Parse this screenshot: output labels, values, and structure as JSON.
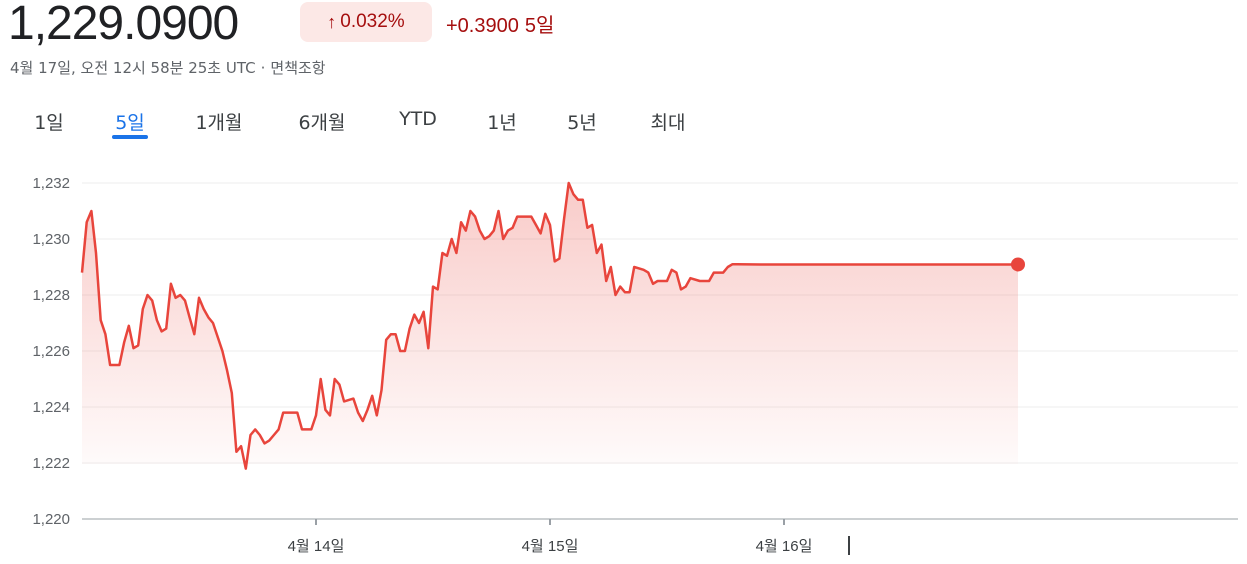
{
  "quote": {
    "price": "1,229.0900",
    "change_percent": "0.032%",
    "change_abs": "+0.3900",
    "period_label": "5일",
    "timestamp": "4월 17일, 오전 12시 58분 25초 UTC",
    "separator": "·",
    "disclaimer": "면책조항"
  },
  "tabs": [
    "1일",
    "5일",
    "1개월",
    "6개월",
    "YTD",
    "1년",
    "5년",
    "최대"
  ],
  "active_tab": "5일",
  "colors": {
    "line": "#e8453c",
    "up_text": "#a50e0e",
    "badge_bg": "#fce8e6",
    "tab_active": "#1a73e8"
  },
  "chart_data": {
    "type": "area",
    "ylim": [
      1220,
      1232
    ],
    "yticks": [
      1220,
      1222,
      1224,
      1226,
      1228,
      1230,
      1232
    ],
    "ytick_labels": [
      "1,220",
      "1,222",
      "1,224",
      "1,226",
      "1,228",
      "1,230",
      "1,232"
    ],
    "xticks": [
      {
        "label": "4월 14일",
        "index": 100
      },
      {
        "label": "4월 15일",
        "index": 200
      },
      {
        "label": "4월 16일",
        "index": 300
      }
    ],
    "x_range": [
      0,
      400
    ],
    "grid": true,
    "series": [
      {
        "values": [
          [
            0,
            1228.8
          ],
          [
            2,
            1230.6
          ],
          [
            4,
            1231.0
          ],
          [
            6,
            1229.5
          ],
          [
            8,
            1227.1
          ],
          [
            10,
            1226.6
          ],
          [
            12,
            1225.5
          ],
          [
            16,
            1225.5
          ],
          [
            18,
            1226.3
          ],
          [
            20,
            1226.9
          ],
          [
            22,
            1226.1
          ],
          [
            24,
            1226.2
          ],
          [
            26,
            1227.5
          ],
          [
            28,
            1228.0
          ],
          [
            30,
            1227.8
          ],
          [
            32,
            1227.1
          ],
          [
            34,
            1226.7
          ],
          [
            36,
            1226.8
          ],
          [
            38,
            1228.4
          ],
          [
            40,
            1227.9
          ],
          [
            42,
            1228.0
          ],
          [
            44,
            1227.8
          ],
          [
            46,
            1227.2
          ],
          [
            48,
            1226.6
          ],
          [
            50,
            1227.9
          ],
          [
            52,
            1227.5
          ],
          [
            54,
            1227.2
          ],
          [
            56,
            1227.0
          ],
          [
            58,
            1226.5
          ],
          [
            60,
            1226.0
          ],
          [
            62,
            1225.3
          ],
          [
            64,
            1224.5
          ],
          [
            66,
            1222.4
          ],
          [
            68,
            1222.6
          ],
          [
            70,
            1221.8
          ],
          [
            72,
            1223.0
          ],
          [
            74,
            1223.2
          ],
          [
            76,
            1223.0
          ],
          [
            78,
            1222.7
          ],
          [
            80,
            1222.8
          ],
          [
            82,
            1223.0
          ],
          [
            84,
            1223.2
          ],
          [
            86,
            1223.8
          ],
          [
            92,
            1223.8
          ],
          [
            94,
            1223.2
          ],
          [
            98,
            1223.2
          ],
          [
            100,
            1223.7
          ],
          [
            102,
            1225.0
          ],
          [
            104,
            1223.9
          ],
          [
            106,
            1223.7
          ],
          [
            108,
            1225.0
          ],
          [
            110,
            1224.8
          ],
          [
            112,
            1224.2
          ],
          [
            116,
            1224.3
          ],
          [
            118,
            1223.8
          ],
          [
            120,
            1223.5
          ],
          [
            122,
            1223.9
          ],
          [
            124,
            1224.4
          ],
          [
            126,
            1223.7
          ],
          [
            128,
            1224.6
          ],
          [
            130,
            1226.4
          ],
          [
            132,
            1226.6
          ],
          [
            134,
            1226.6
          ],
          [
            136,
            1226.0
          ],
          [
            138,
            1226.0
          ],
          [
            140,
            1226.8
          ],
          [
            142,
            1227.3
          ],
          [
            144,
            1227.0
          ],
          [
            146,
            1227.4
          ],
          [
            148,
            1226.1
          ],
          [
            150,
            1228.3
          ],
          [
            152,
            1228.2
          ],
          [
            154,
            1229.5
          ],
          [
            156,
            1229.4
          ],
          [
            158,
            1230.0
          ],
          [
            160,
            1229.5
          ],
          [
            162,
            1230.6
          ],
          [
            164,
            1230.3
          ],
          [
            166,
            1231.0
          ],
          [
            168,
            1230.8
          ],
          [
            170,
            1230.3
          ],
          [
            172,
            1230.0
          ],
          [
            174,
            1230.1
          ],
          [
            176,
            1230.3
          ],
          [
            178,
            1231.0
          ],
          [
            180,
            1230.0
          ],
          [
            182,
            1230.3
          ],
          [
            184,
            1230.4
          ],
          [
            186,
            1230.8
          ],
          [
            192,
            1230.8
          ],
          [
            194,
            1230.5
          ],
          [
            196,
            1230.2
          ],
          [
            198,
            1230.9
          ],
          [
            200,
            1230.5
          ],
          [
            202,
            1229.2
          ],
          [
            204,
            1229.3
          ],
          [
            206,
            1230.7
          ],
          [
            208,
            1232.0
          ],
          [
            210,
            1231.6
          ],
          [
            212,
            1231.4
          ],
          [
            214,
            1231.4
          ],
          [
            216,
            1230.4
          ],
          [
            218,
            1230.5
          ],
          [
            220,
            1229.5
          ],
          [
            222,
            1229.8
          ],
          [
            224,
            1228.5
          ],
          [
            226,
            1229.0
          ],
          [
            228,
            1228.0
          ],
          [
            230,
            1228.3
          ],
          [
            232,
            1228.1
          ],
          [
            234,
            1228.1
          ],
          [
            236,
            1229.0
          ],
          [
            240,
            1228.9
          ],
          [
            242,
            1228.8
          ],
          [
            244,
            1228.4
          ],
          [
            246,
            1228.5
          ],
          [
            250,
            1228.5
          ],
          [
            252,
            1228.9
          ],
          [
            254,
            1228.8
          ],
          [
            256,
            1228.2
          ],
          [
            258,
            1228.3
          ],
          [
            260,
            1228.6
          ],
          [
            264,
            1228.5
          ],
          [
            268,
            1228.5
          ],
          [
            270,
            1228.8
          ],
          [
            274,
            1228.8
          ],
          [
            276,
            1229.0
          ],
          [
            278,
            1229.1
          ],
          [
            280,
            1229.1
          ],
          [
            290,
            1229.09
          ],
          [
            400,
            1229.09
          ]
        ]
      }
    ]
  }
}
